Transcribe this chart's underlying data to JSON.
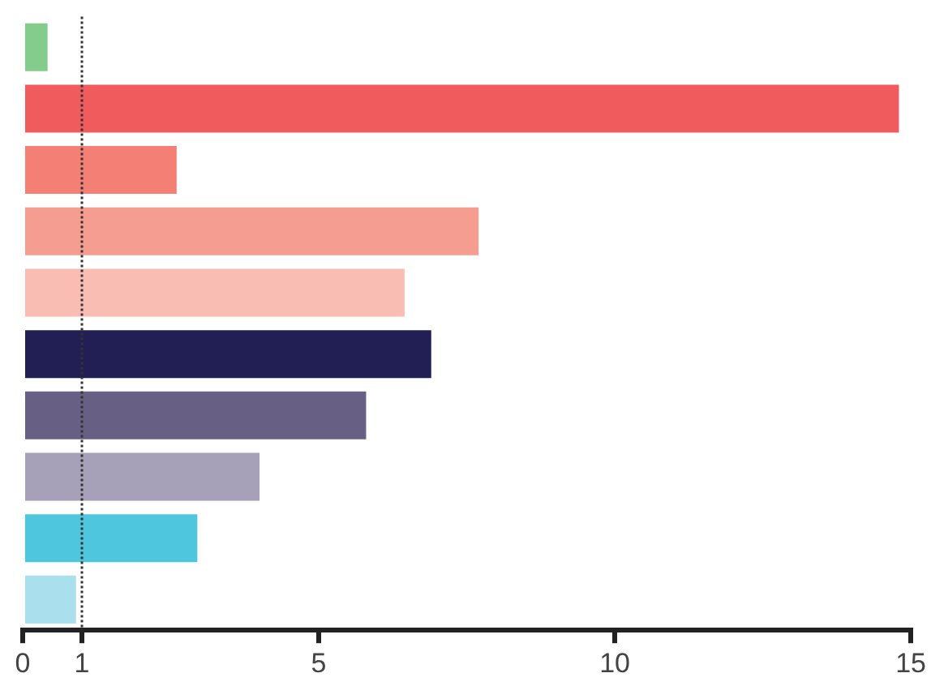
{
  "chart_data": {
    "type": "bar",
    "orientation": "horizontal",
    "categories": [
      null,
      null,
      null,
      null,
      null,
      null,
      null,
      null,
      null,
      null
    ],
    "values": [
      0.42,
      14.8,
      2.6,
      7.7,
      6.45,
      6.9,
      5.8,
      4.0,
      2.95,
      0.9
    ],
    "colors": [
      "#84cc8c",
      "#f05c5e",
      "#f37f75",
      "#f59d90",
      "#f9bdb3",
      "#221f55",
      "#686084",
      "#a6a0b8",
      "#4ec6de",
      "#aadfee"
    ],
    "xlim": [
      0,
      15
    ],
    "xticks": [
      0,
      1,
      5,
      10,
      15
    ],
    "grid": false,
    "legend": false,
    "ref_lines": [
      {
        "axis": "x",
        "value": 1,
        "color": "#333333",
        "line_style": "dotted"
      }
    ]
  }
}
